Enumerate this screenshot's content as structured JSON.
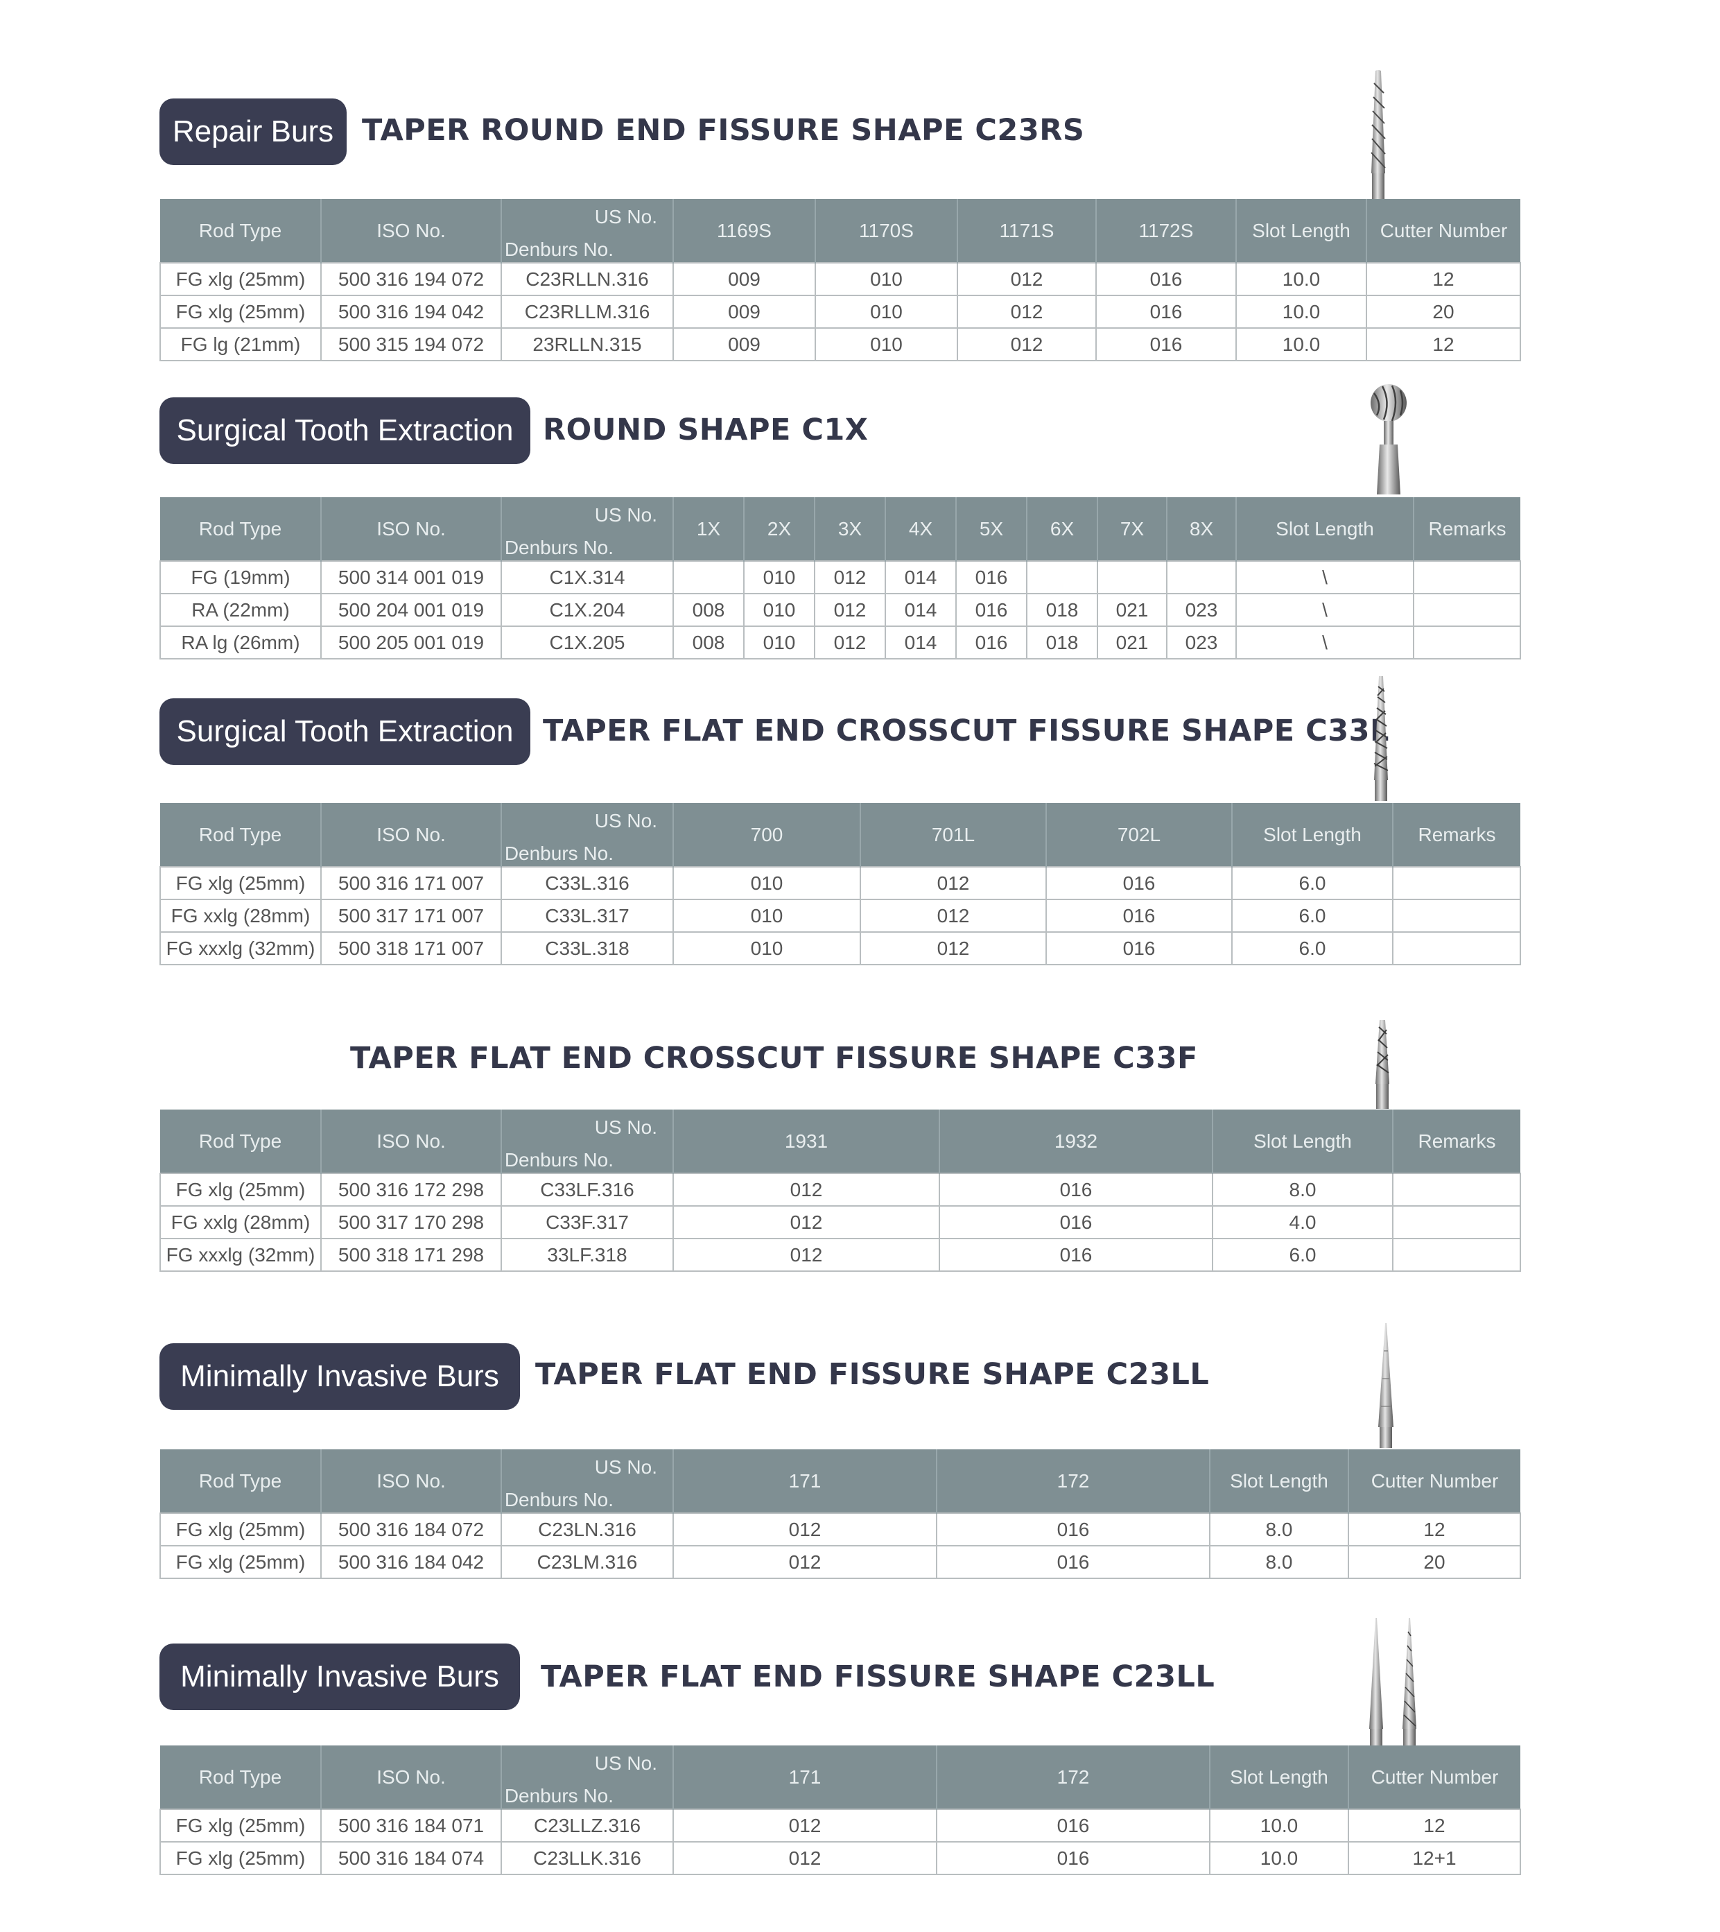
{
  "sections": [
    {
      "badge": "Repair Burs",
      "title": "TAPER ROUND END FISSURE SHAPE  C23RS",
      "tool_icon": "taper-round-end-fissure-bur",
      "headers": [
        "Rod Type",
        "ISO No.",
        "US No.",
        "Denburs No.",
        "1169S",
        "1170S",
        "1171S",
        "1172S",
        "Slot Length",
        "Cutter Number"
      ],
      "rows": [
        [
          "FG xlg (25mm)",
          "500 316 194 072",
          "C23RLLN.316",
          "009",
          "010",
          "012",
          "016",
          "10.0",
          "12"
        ],
        [
          "FG xlg (25mm)",
          "500 316 194 042",
          "C23RLLM.316",
          "009",
          "010",
          "012",
          "016",
          "10.0",
          "20"
        ],
        [
          "FG lg (21mm)",
          "500 315 194 072",
          "23RLLN.315",
          "009",
          "010",
          "012",
          "016",
          "10.0",
          "12"
        ]
      ]
    },
    {
      "badge": "Surgical Tooth Extraction",
      "title": "ROUND SHAPE C1X",
      "tool_icon": "round-bur",
      "headers": [
        "Rod Type",
        "ISO No.",
        "US No.",
        "Denburs No.",
        "1X",
        "2X",
        "3X",
        "4X",
        "5X",
        "6X",
        "7X",
        "8X",
        "Slot Length",
        "Remarks"
      ],
      "rows": [
        [
          "FG (19mm)",
          "500 314 001 019",
          "C1X.314",
          "",
          "010",
          "012",
          "014",
          "016",
          "",
          "",
          "",
          "\\",
          ""
        ],
        [
          "RA (22mm)",
          "500 204 001 019",
          "C1X.204",
          "008",
          "010",
          "012",
          "014",
          "016",
          "018",
          "021",
          "023",
          "\\",
          ""
        ],
        [
          "RA lg (26mm)",
          "500 205 001 019",
          "C1X.205",
          "008",
          "010",
          "012",
          "014",
          "016",
          "018",
          "021",
          "023",
          "\\",
          ""
        ]
      ]
    },
    {
      "badge": "Surgical Tooth Extraction",
      "title": "TAPER FLAT END CROSSCUT FISSURE SHAPE C33L",
      "tool_icon": "crosscut-fissure-bur",
      "headers": [
        "Rod Type",
        "ISO No.",
        "US No.",
        "Denburs No.",
        "700",
        "701L",
        "702L",
        "Slot Length",
        "Remarks"
      ],
      "rows": [
        [
          "FG xlg (25mm)",
          "500 316 171 007",
          "C33L.316",
          "010",
          "012",
          "016",
          "6.0",
          ""
        ],
        [
          "FG xxlg (28mm)",
          "500 317 171 007",
          "C33L.317",
          "010",
          "012",
          "016",
          "6.0",
          ""
        ],
        [
          "FG xxxlg (32mm)",
          "500 318 171 007",
          "C33L.318",
          "010",
          "012",
          "016",
          "6.0",
          ""
        ]
      ]
    },
    {
      "badge": "",
      "title": "TAPER FLAT END CROSSCUT FISSURE SHAPE  C33F",
      "tool_icon": "short-crosscut-bur",
      "headers": [
        "Rod Type",
        "ISO No.",
        "US No.",
        "Denburs No.",
        "1931",
        "1932",
        "Slot Length",
        "Remarks"
      ],
      "rows": [
        [
          "FG xlg (25mm)",
          "500 316 172 298",
          "C33LF.316",
          "012",
          "016",
          "8.0",
          ""
        ],
        [
          "FG xxlg (28mm)",
          "500 317 170 298",
          "C33F.317",
          "012",
          "016",
          "4.0",
          ""
        ],
        [
          "FG xxxlg (32mm)",
          "500 318 171 298",
          "33LF.318",
          "012",
          "016",
          "6.0",
          ""
        ]
      ]
    },
    {
      "badge": "Minimally Invasive Burs",
      "title": "TAPER FLAT END FISSURE SHAPE C23LL",
      "tool_icon": "long-taper-bur",
      "headers": [
        "Rod Type",
        "ISO No.",
        "US No.",
        "Denburs No.",
        "171",
        "172",
        "Slot Length",
        "Cutter Number"
      ],
      "rows": [
        [
          "FG xlg (25mm)",
          "500 316 184 072",
          "C23LN.316",
          "012",
          "016",
          "8.0",
          "12"
        ],
        [
          "FG xlg (25mm)",
          "500 316 184 042",
          "C23LM.316",
          "012",
          "016",
          "8.0",
          "20"
        ]
      ]
    },
    {
      "badge": "Minimally Invasive Burs",
      "title": "TAPER FLAT END FISSURE SHAPE C23LL",
      "tool_icon": "double-taper-bur",
      "headers": [
        "Rod Type",
        "ISO No.",
        "US No.",
        "Denburs No.",
        "171",
        "172",
        "Slot Length",
        "Cutter Number"
      ],
      "rows": [
        [
          "FG xlg (25mm)",
          "500 316 184 071",
          "C23LLZ.316",
          "012",
          "016",
          "10.0",
          "12"
        ],
        [
          "FG xlg (25mm)",
          "500 316 184 074",
          "C23LLK.316",
          "012",
          "016",
          "10.0",
          "12+1"
        ]
      ]
    }
  ]
}
